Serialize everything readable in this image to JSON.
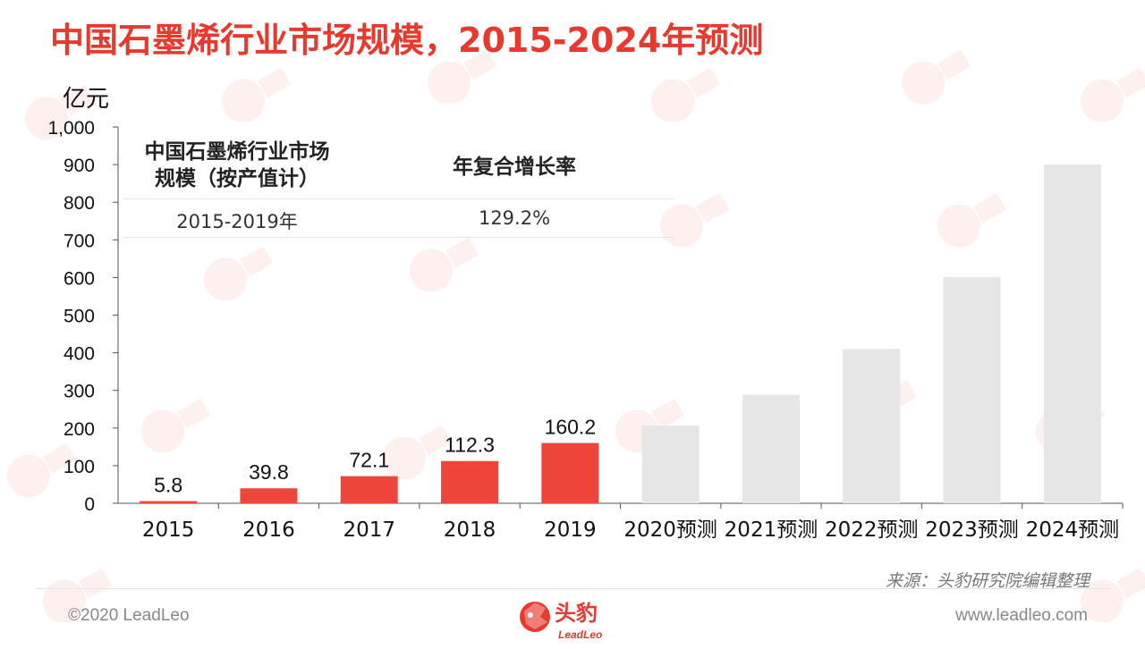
{
  "page": {
    "title": "中国石墨烯行业市场规模，2015-2024年预测",
    "unit": "亿元",
    "source": "来源：头豹研究院编辑整理",
    "copyright": "©2020 LeadLeo",
    "website": "www.leadleo.com",
    "logo": {
      "name": "头豹",
      "sub": "LeadLeo"
    },
    "colors": {
      "actual": "#ee463b",
      "forecast": "#e6e6e6",
      "title": "#e8392f"
    }
  },
  "cagr_table": {
    "header_metric": "中国石墨烯行业市场规模（按产值计）",
    "header_metric_line1": "中国石墨烯行业市场",
    "header_metric_line2": "规模（按产值计）",
    "header_rate": "年复合增长率",
    "period": "2015-2019年",
    "rate": "129.2%"
  },
  "chart_data": {
    "type": "bar",
    "categories": [
      "2015",
      "2016",
      "2017",
      "2018",
      "2019",
      "2020预测",
      "2021预测",
      "2022预测",
      "2023预测",
      "2024预测"
    ],
    "values": [
      5.8,
      39.8,
      72.1,
      112.3,
      160.2,
      207,
      288,
      410,
      601,
      900
    ],
    "data_labels": [
      "5.8",
      "39.8",
      "72.1",
      "112.3",
      "160.2",
      "",
      "",
      "",
      "",
      ""
    ],
    "is_forecast": [
      false,
      false,
      false,
      false,
      false,
      true,
      true,
      true,
      true,
      true
    ],
    "ylabel": "亿元",
    "ylim": [
      0,
      1000
    ],
    "yticks": [
      0,
      100,
      200,
      300,
      400,
      500,
      600,
      700,
      800,
      900,
      1000
    ],
    "ytick_labels": [
      "0",
      "100",
      "200",
      "300",
      "400",
      "500",
      "600",
      "700",
      "800",
      "900",
      "1,000"
    ],
    "grid": false,
    "legend": "none"
  }
}
